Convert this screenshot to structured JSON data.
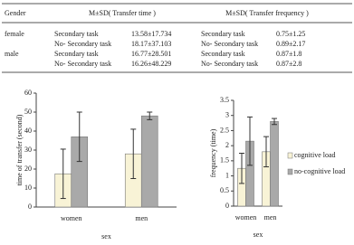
{
  "table": {
    "header": [
      "Gender",
      "M±SD( Transfer time )",
      "M±SD( Transfer frequency )"
    ],
    "rows": [
      [
        "female",
        "Secondary task",
        "13.58±17.734",
        "Secondary task",
        "0.75±1.25"
      ],
      [
        null,
        "No- Secondary task",
        "18.17±37.103",
        "No- Secondary task",
        "0.89±2.17"
      ],
      [
        "male",
        "Secondary task",
        "16.77±28.501",
        "Secondary task",
        "0.87±1.8"
      ],
      [
        null,
        "No- Secondary task",
        "16.26±48.229",
        "No- Secondary task",
        "0.87±2.8"
      ]
    ]
  },
  "chart_data": [
    {
      "type": "bar",
      "y_label": "time of transfer (second)",
      "x_label": "sex",
      "categories": [
        "women",
        "men"
      ],
      "ylim": [
        0,
        60
      ],
      "yticks": [
        0,
        10,
        20,
        30,
        40,
        50,
        60
      ],
      "series": [
        {
          "color": "#f8f3d6",
          "values": [
            17.5,
            28
          ],
          "errors": [
            13,
            13
          ]
        },
        {
          "color": "#a9a9a9",
          "values": [
            37,
            48
          ],
          "errors": [
            13,
            2
          ]
        }
      ]
    },
    {
      "type": "bar",
      "y_label": "frequency (time)",
      "x_label": "sex",
      "categories": [
        "women",
        "men"
      ],
      "ylim": [
        0,
        3.5
      ],
      "yticks": [
        0,
        0.5,
        1,
        1.5,
        2,
        2.5,
        3,
        3.5
      ],
      "legend": "right",
      "series": [
        {
          "name": "cognitive load",
          "color": "#f8f3d6",
          "values": [
            1.25,
            1.8
          ],
          "errors": [
            0.5,
            0.5
          ]
        },
        {
          "name": "no-cognitive load",
          "color": "#a9a9a9",
          "values": [
            2.15,
            2.8
          ],
          "errors": [
            0.8,
            0.1
          ]
        }
      ]
    }
  ]
}
